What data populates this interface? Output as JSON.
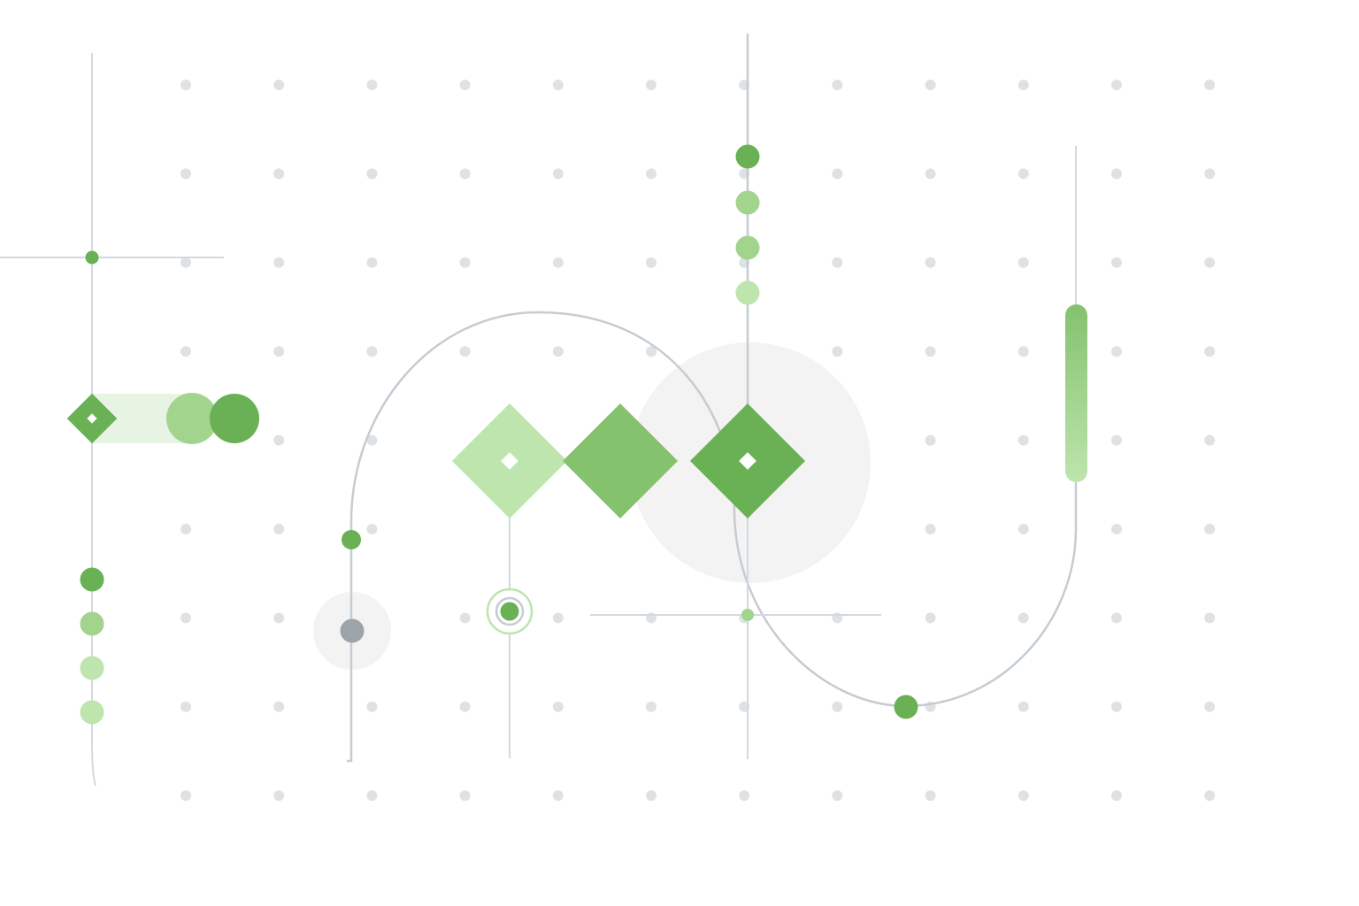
{
  "colors": {
    "background": "#ffffff",
    "grid_dot": "#dfe2e5",
    "line": "#c5ccd2",
    "line_light": "#d3d9de",
    "halo": "#f3f3f3",
    "green_dark": "#6ab155",
    "green_mid": "#84c26e",
    "green_light": "#a2d48e",
    "green_pale": "#bde5ad",
    "green_wash": "#e8f4e3",
    "gray_node": "#9ba3ab"
  },
  "diagram": {
    "dot_grid": {
      "columns": 12,
      "rows": 9
    },
    "node_types": [
      "diamond",
      "circle",
      "target-ring",
      "capsule",
      "halo"
    ],
    "diamonds": [
      {
        "name": "left-diamond-node",
        "color": "green_dark",
        "hollow_center": true
      },
      {
        "name": "light-diamond-node",
        "color": "green_pale",
        "hollow_center": true
      },
      {
        "name": "middle-diamond-node",
        "color": "green_mid",
        "hollow_center": false
      },
      {
        "name": "right-diamond-node",
        "color": "green_dark",
        "hollow_center": true
      }
    ],
    "vertical_dot_sequences": [
      {
        "name": "left-dot-sequence",
        "steps": 4
      },
      {
        "name": "top-dot-sequence",
        "steps": 4
      }
    ],
    "capsule": {
      "name": "gradient-capsule",
      "from": "green_mid",
      "to": "green_pale"
    }
  }
}
